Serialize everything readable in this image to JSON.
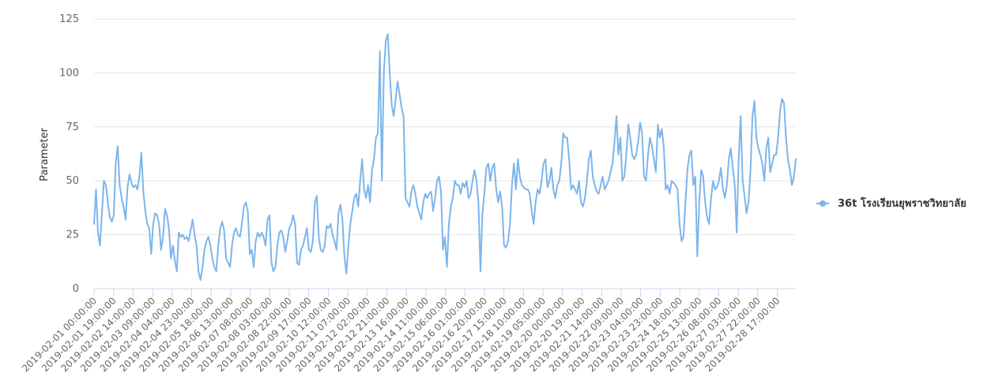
{
  "chart_data": {
    "type": "line",
    "title": "",
    "ylabel": "Parameter",
    "xlabel": "",
    "ylim": [
      0,
      125
    ],
    "yticks": [
      0,
      25,
      50,
      75,
      100,
      125
    ],
    "grid": true,
    "legend_position": "right",
    "series_color": "#7cb5ec",
    "x_tick_labels": [
      "2019-02-01 00:00:00",
      "2019-02-01 19:00:00",
      "2019-02-02 14:00:00",
      "2019-02-03 09:00:00",
      "2019-02-04 04:00:00",
      "2019-02-04 23:00:00",
      "2019-02-05 18:00:00",
      "2019-02-06 13:00:00",
      "2019-02-07 08:00:00",
      "2019-02-08 03:00:00",
      "2019-02-08 22:00:00",
      "2019-02-09 17:00:00",
      "2019-02-10 12:00:00",
      "2019-02-11 07:00:00",
      "2019-02-12 02:00:00",
      "2019-02-12 21:00:00",
      "2019-02-13 16:00:00",
      "2019-02-14 11:00:00",
      "2019-02-15 06:00:00",
      "2019-02-16 01:00:00",
      "2019-02-16 20:00:00",
      "2019-02-17 15:00:00",
      "2019-02-18 10:00:00",
      "2019-02-19 05:00:00",
      "2019-02-20 00:00:00",
      "2019-02-20 19:00:00",
      "2019-02-21 14:00:00",
      "2019-02-22 09:00:00",
      "2019-02-23 04:00:00",
      "2019-02-23 23:00:00",
      "2019-02-24 18:00:00",
      "2019-02-25 13:00:00",
      "2019-02-26 08:00:00",
      "2019-02-27 03:00:00",
      "2019-02-27 22:00:00",
      "2019-02-28 17:00:00"
    ],
    "series": [
      {
        "name": "36t โรงเรียนยุพราชวิทยาลัย",
        "values": [
          30,
          46,
          26,
          20,
          35,
          50,
          48,
          40,
          33,
          31,
          34,
          58,
          66,
          48,
          42,
          38,
          32,
          47,
          53,
          49,
          47,
          48,
          46,
          52,
          63,
          45,
          36,
          30,
          28,
          16,
          30,
          35,
          34,
          30,
          18,
          24,
          37,
          34,
          28,
          14,
          20,
          13,
          8,
          26,
          24,
          25,
          23,
          24,
          22,
          27,
          32,
          25,
          20,
          8,
          4,
          10,
          18,
          22,
          24,
          20,
          14,
          10,
          8,
          20,
          28,
          31,
          27,
          14,
          12,
          10,
          20,
          26,
          28,
          25,
          24,
          30,
          38,
          40,
          36,
          16,
          18,
          10,
          22,
          26,
          24,
          26,
          24,
          20,
          32,
          34,
          12,
          8,
          10,
          20,
          26,
          27,
          24,
          17,
          22,
          28,
          30,
          34,
          30,
          12,
          11,
          18,
          20,
          24,
          28,
          18,
          17,
          22,
          40,
          43,
          24,
          18,
          17,
          20,
          29,
          28,
          30,
          25,
          22,
          18,
          35,
          39,
          32,
          15,
          7,
          20,
          30,
          36,
          42,
          44,
          38,
          50,
          60,
          46,
          42,
          48,
          40,
          55,
          60,
          70,
          72,
          110,
          50,
          100,
          115,
          118,
          100,
          85,
          80,
          88,
          96,
          90,
          84,
          80,
          42,
          40,
          38,
          45,
          48,
          44,
          38,
          35,
          32,
          40,
          44,
          42,
          44,
          45,
          36,
          42,
          50,
          52,
          45,
          18,
          24,
          10,
          30,
          38,
          42,
          50,
          48,
          48,
          44,
          49,
          47,
          50,
          42,
          44,
          50,
          55,
          50,
          40,
          8,
          35,
          44,
          56,
          58,
          50,
          56,
          58,
          46,
          40,
          45,
          38,
          20,
          19,
          22,
          30,
          48,
          58,
          46,
          60,
          52,
          48,
          47,
          46,
          46,
          44,
          36,
          30,
          40,
          46,
          44,
          50,
          58,
          60,
          47,
          50,
          56,
          46,
          42,
          48,
          50,
          58,
          72,
          70,
          70,
          60,
          46,
          48,
          46,
          44,
          50,
          40,
          38,
          42,
          50,
          60,
          64,
          52,
          48,
          45,
          44,
          48,
          52,
          46,
          48,
          50,
          54,
          58,
          68,
          80,
          62,
          70,
          50,
          52,
          62,
          76,
          70,
          62,
          60,
          62,
          68,
          77,
          72,
          52,
          50,
          62,
          70,
          66,
          60,
          54,
          76,
          70,
          74,
          66,
          46,
          48,
          44,
          50,
          49,
          48,
          46,
          30,
          22,
          24,
          40,
          55,
          62,
          64,
          48,
          52,
          15,
          40,
          55,
          52,
          40,
          33,
          30,
          42,
          50,
          46,
          47,
          50,
          56,
          46,
          42,
          48,
          60,
          65,
          56,
          48,
          26,
          60,
          80,
          50,
          43,
          35,
          40,
          55,
          80,
          87,
          70,
          65,
          62,
          58,
          50,
          65,
          70,
          54,
          58,
          62,
          62,
          70,
          82,
          88,
          86,
          70,
          60,
          55,
          48,
          52,
          60
        ]
      }
    ]
  }
}
